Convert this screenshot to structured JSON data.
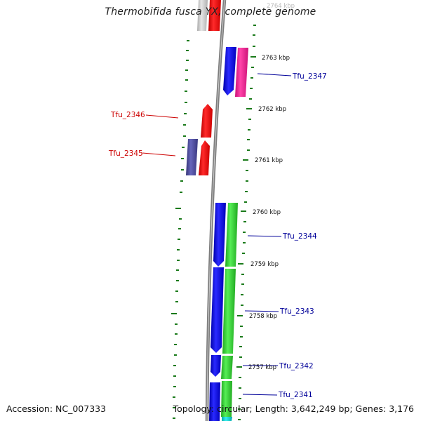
{
  "title": "Thermobifida fusca YX, complete genome",
  "footer": {
    "accession": "Accession: NC_007333",
    "summary": "Topology: circular; Length: 3,642,249 bp; Genes: 3,176"
  },
  "scale": {
    "ticks": [
      {
        "label": "2764 kbp",
        "faded": true
      },
      {
        "label": "2763 kbp"
      },
      {
        "label": "2762 kbp"
      },
      {
        "label": "2761 kbp"
      },
      {
        "label": "2760 kbp"
      },
      {
        "label": "2759 kbp"
      },
      {
        "label": "2758 kbp"
      },
      {
        "label": "2757 kbp"
      }
    ]
  },
  "gene_labels": {
    "tfu_2347": "Tfu_2347",
    "tfu_2346": "Tfu_2346",
    "tfu_2345": "Tfu_2345",
    "tfu_2344": "Tfu_2344",
    "tfu_2343": "Tfu_2343",
    "tfu_2342": "Tfu_2342",
    "tfu_2341": "Tfu_2341"
  },
  "colors": {
    "forward_label": "#000099",
    "reverse_label": "#cc0000",
    "tick": "#1a7a1a",
    "backbone": "#8a8a8a",
    "cds_blue": "#1111ee",
    "cds_red": "#ee1111",
    "cds_magenta": "#ee2299",
    "cds_purple": "#4b4a99",
    "cds_green": "#33cc33",
    "cds_cyan": "#11cccc",
    "cds_gray": "#cccccc"
  }
}
